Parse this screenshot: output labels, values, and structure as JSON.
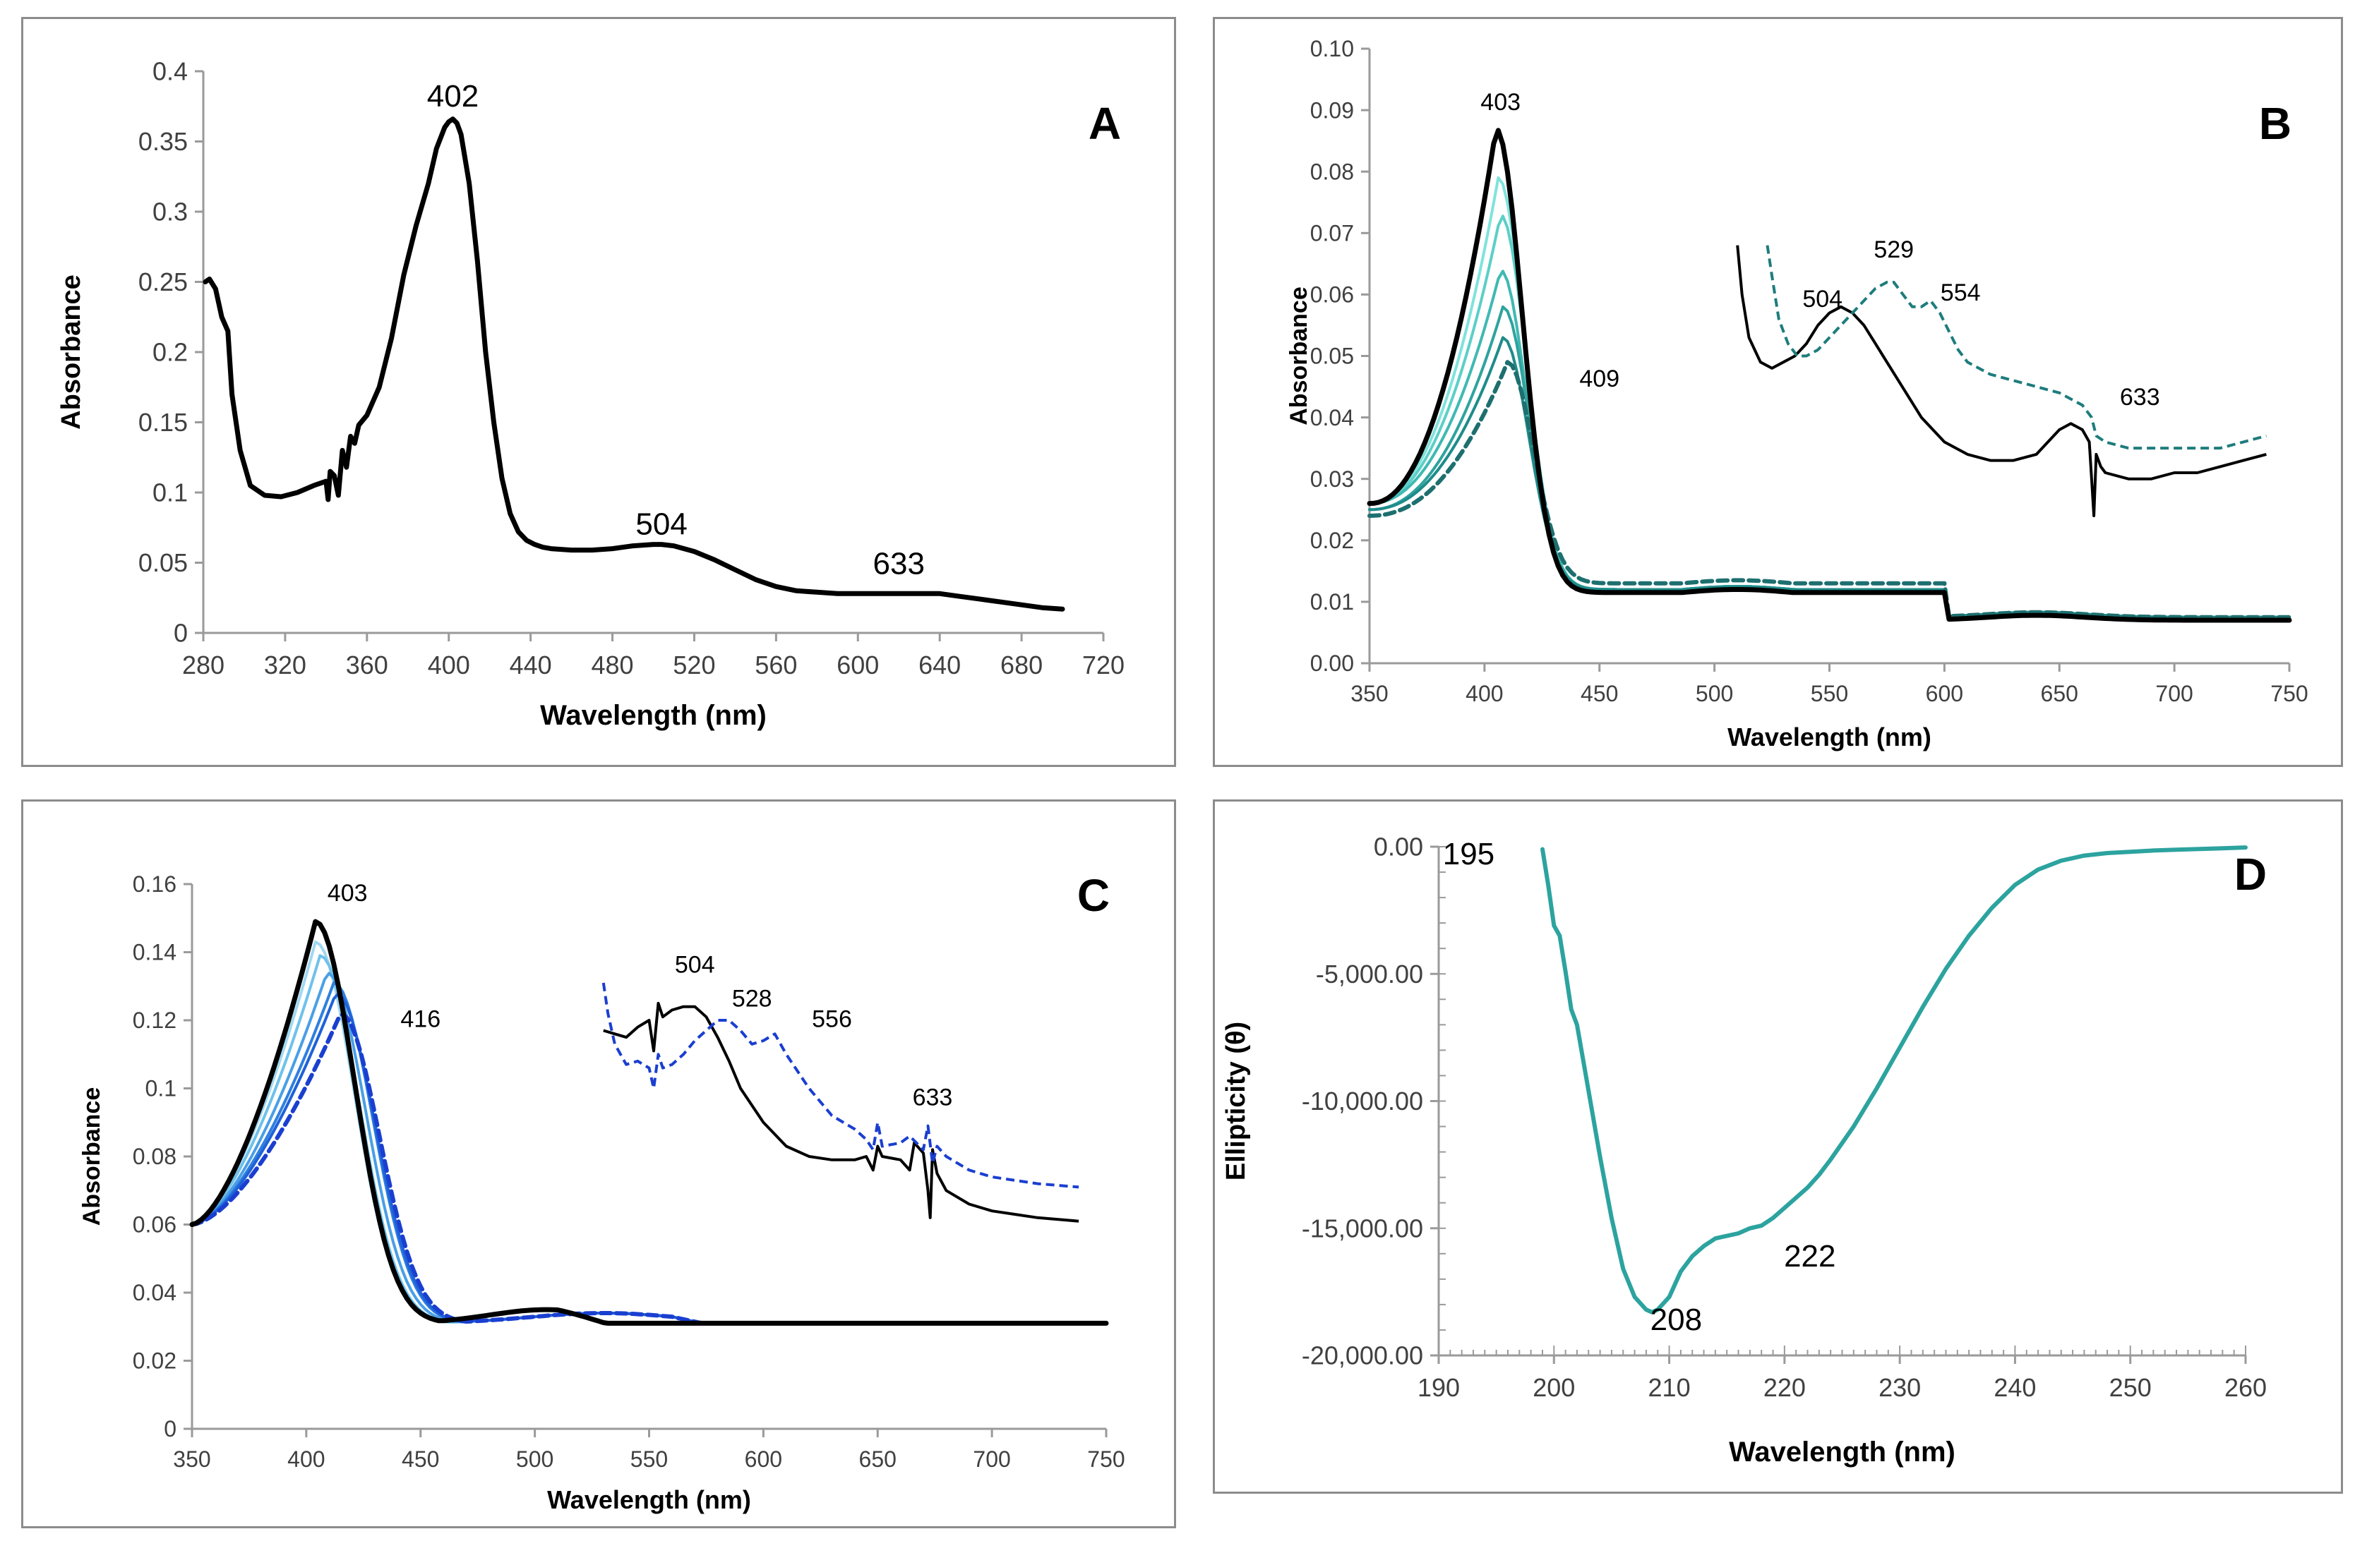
{
  "chart_data": [
    {
      "type": "line",
      "panel": "A",
      "xlabel": "Wavelength (nm)",
      "ylabel": "Absorbance",
      "xlim": [
        280,
        720
      ],
      "ylim": [
        0,
        0.4
      ],
      "xticks": [
        280,
        320,
        360,
        400,
        440,
        480,
        520,
        560,
        600,
        640,
        680,
        720
      ],
      "yticks": [
        0,
        0.05,
        0.1,
        0.15,
        0.2,
        0.25,
        0.3,
        0.35,
        0.4
      ],
      "annotations": [
        {
          "text": "402",
          "x": 402,
          "y": 0.375
        },
        {
          "text": "504",
          "x": 504,
          "y": 0.07
        },
        {
          "text": "633",
          "x": 620,
          "y": 0.042
        }
      ],
      "series": [
        {
          "name": "spectrum",
          "color": "#000000",
          "width": 7,
          "dash": "",
          "x": [
            281,
            283,
            286,
            289,
            292,
            294,
            298,
            303,
            310,
            318,
            326,
            334,
            340,
            341,
            342,
            344,
            346,
            348,
            350,
            352,
            354,
            356,
            360,
            366,
            372,
            378,
            384,
            390,
            394,
            398,
            400,
            402,
            404,
            406,
            410,
            414,
            418,
            422,
            426,
            430,
            434,
            438,
            442,
            446,
            450,
            460,
            470,
            480,
            490,
            500,
            504,
            510,
            520,
            530,
            540,
            550,
            560,
            570,
            580,
            590,
            600,
            610,
            620,
            630,
            640,
            650,
            660,
            670,
            680,
            690,
            700
          ],
          "y": [
            0.25,
            0.252,
            0.245,
            0.225,
            0.215,
            0.17,
            0.13,
            0.105,
            0.098,
            0.097,
            0.1,
            0.105,
            0.108,
            0.095,
            0.115,
            0.112,
            0.098,
            0.13,
            0.118,
            0.14,
            0.135,
            0.148,
            0.155,
            0.175,
            0.21,
            0.255,
            0.29,
            0.32,
            0.345,
            0.36,
            0.364,
            0.366,
            0.363,
            0.355,
            0.32,
            0.265,
            0.2,
            0.15,
            0.11,
            0.085,
            0.072,
            0.066,
            0.063,
            0.061,
            0.06,
            0.059,
            0.059,
            0.06,
            0.062,
            0.063,
            0.063,
            0.062,
            0.058,
            0.052,
            0.045,
            0.038,
            0.033,
            0.03,
            0.029,
            0.028,
            0.028,
            0.028,
            0.028,
            0.028,
            0.028,
            0.026,
            0.024,
            0.022,
            0.02,
            0.018,
            0.017
          ]
        }
      ]
    },
    {
      "type": "line",
      "panel": "B",
      "xlabel": "Wavelength (nm)",
      "ylabel": "Absorbance",
      "xlim": [
        350,
        750
      ],
      "ylim": [
        0,
        0.1
      ],
      "xticks": [
        350,
        400,
        450,
        500,
        550,
        600,
        650,
        700,
        750
      ],
      "yticks": [
        0.0,
        0.01,
        0.02,
        0.03,
        0.04,
        0.05,
        0.06,
        0.07,
        0.08,
        0.09,
        0.1
      ],
      "annotations": [
        {
          "text": "403",
          "x": 407,
          "y": 0.09
        },
        {
          "text": "409",
          "x": 450,
          "y": 0.045
        },
        {
          "text": "504",
          "x": 547,
          "y": 0.058
        },
        {
          "text": "529",
          "x": 578,
          "y": 0.066
        },
        {
          "text": "554",
          "x": 607,
          "y": 0.059
        },
        {
          "text": "633",
          "x": 685,
          "y": 0.042
        }
      ],
      "series": [
        {
          "name": "titration-1",
          "color": "#7fe3dc",
          "width": 4,
          "dash": "",
          "peak": 0.079,
          "peakx": 406,
          "tail": [
            0.026,
            0.012,
            0.0075
          ]
        },
        {
          "name": "titration-2",
          "color": "#5ccfc7",
          "width": 4,
          "dash": "",
          "peak": 0.073,
          "peakx": 407,
          "tail": [
            0.026,
            0.012,
            0.0075
          ]
        },
        {
          "name": "titration-3",
          "color": "#3fb9b3",
          "width": 4,
          "dash": "",
          "peak": 0.064,
          "peakx": 407,
          "tail": [
            0.026,
            0.012,
            0.0075
          ]
        },
        {
          "name": "titration-4",
          "color": "#2fa39f",
          "width": 4,
          "dash": "",
          "peak": 0.058,
          "peakx": 408,
          "tail": [
            0.025,
            0.012,
            0.0075
          ]
        },
        {
          "name": "titration-5",
          "color": "#1e8c8a",
          "width": 4,
          "dash": "",
          "peak": 0.053,
          "peakx": 408,
          "tail": [
            0.025,
            0.012,
            0.0075
          ]
        },
        {
          "name": "final-409",
          "color": "#1e6f6f",
          "width": 6,
          "dash": "14,8",
          "peak": 0.049,
          "peakx": 410,
          "tail": [
            0.024,
            0.013,
            0.0075
          ]
        },
        {
          "name": "initial-403",
          "color": "#000000",
          "width": 7,
          "dash": "",
          "peak": 0.087,
          "peakx": 405,
          "tail": [
            0.026,
            0.0115,
            0.007
          ]
        }
      ],
      "inset": [
        {
          "name": "inset-solid",
          "color": "#000000",
          "width": 4,
          "dash": "",
          "x": [
            510,
            512,
            515,
            520,
            525,
            530,
            535,
            540,
            545,
            550,
            555,
            560,
            565,
            570,
            575,
            580,
            590,
            600,
            610,
            620,
            630,
            640,
            645,
            650,
            655,
            660,
            663,
            664,
            665,
            666,
            668,
            670,
            680,
            690,
            700,
            710,
            720,
            730,
            740
          ],
          "y": [
            0.068,
            0.06,
            0.053,
            0.049,
            0.048,
            0.049,
            0.05,
            0.052,
            0.055,
            0.057,
            0.058,
            0.057,
            0.055,
            0.052,
            0.049,
            0.046,
            0.04,
            0.036,
            0.034,
            0.033,
            0.033,
            0.034,
            0.036,
            0.038,
            0.039,
            0.038,
            0.036,
            0.03,
            0.024,
            0.034,
            0.032,
            0.031,
            0.03,
            0.03,
            0.031,
            0.031,
            0.032,
            0.033,
            0.034
          ]
        },
        {
          "name": "inset-dashed",
          "color": "#1e7c7c",
          "width": 4,
          "dash": "12,7",
          "x": [
            523,
            525,
            528,
            532,
            536,
            540,
            545,
            550,
            555,
            560,
            565,
            570,
            575,
            578,
            582,
            586,
            590,
            594,
            598,
            602,
            606,
            610,
            620,
            630,
            640,
            650,
            655,
            660,
            664,
            666,
            670,
            680,
            690,
            700,
            710,
            720,
            730,
            740
          ],
          "y": [
            0.068,
            0.063,
            0.056,
            0.052,
            0.05,
            0.05,
            0.051,
            0.053,
            0.055,
            0.057,
            0.059,
            0.061,
            0.062,
            0.062,
            0.06,
            0.058,
            0.058,
            0.059,
            0.057,
            0.054,
            0.051,
            0.049,
            0.047,
            0.046,
            0.045,
            0.044,
            0.043,
            0.042,
            0.04,
            0.037,
            0.036,
            0.035,
            0.035,
            0.035,
            0.035,
            0.035,
            0.036,
            0.037
          ]
        }
      ]
    },
    {
      "type": "line",
      "panel": "C",
      "xlabel": "Wavelength (nm)",
      "ylabel": "Absorbance",
      "xlim": [
        350,
        750
      ],
      "ylim": [
        0,
        0.16
      ],
      "xticks": [
        350,
        400,
        450,
        500,
        550,
        600,
        650,
        700,
        750
      ],
      "yticks": [
        0,
        0.02,
        0.04,
        0.06,
        0.08,
        0.1,
        0.12,
        0.14,
        0.16
      ],
      "annotations": [
        {
          "text": "403",
          "x": 418,
          "y": 0.155
        },
        {
          "text": "416",
          "x": 450,
          "y": 0.118
        },
        {
          "text": "504",
          "x": 570,
          "y": 0.134
        },
        {
          "text": "528",
          "x": 595,
          "y": 0.124
        },
        {
          "text": "556",
          "x": 630,
          "y": 0.118
        },
        {
          "text": "633",
          "x": 674,
          "y": 0.095
        }
      ],
      "series": [
        {
          "name": "titration-1",
          "color": "#9fd8f2",
          "width": 4,
          "dash": "",
          "peak": 0.143,
          "peakx": 404
        },
        {
          "name": "titration-2",
          "color": "#6fc1ec",
          "width": 4,
          "dash": "",
          "peak": 0.139,
          "peakx": 406
        },
        {
          "name": "titration-3",
          "color": "#4a9fe6",
          "width": 4,
          "dash": "",
          "peak": 0.134,
          "peakx": 409
        },
        {
          "name": "titration-4",
          "color": "#2f7fe0",
          "width": 4,
          "dash": "",
          "peak": 0.131,
          "peakx": 412
        },
        {
          "name": "titration-5",
          "color": "#1f62d8",
          "width": 4,
          "dash": "",
          "peak": 0.128,
          "peakx": 413
        },
        {
          "name": "final-416",
          "color": "#1a3fd0",
          "width": 6,
          "dash": "14,8",
          "peak": 0.122,
          "peakx": 415
        },
        {
          "name": "initial-403",
          "color": "#000000",
          "width": 7,
          "dash": "",
          "peak": 0.149,
          "peakx": 404
        }
      ],
      "inset": [
        {
          "name": "inset-solid",
          "color": "#000000",
          "width": 4,
          "dash": "",
          "x": [
            530,
            535,
            540,
            545,
            550,
            552,
            554,
            556,
            560,
            565,
            570,
            575,
            580,
            585,
            590,
            600,
            610,
            620,
            630,
            640,
            645,
            648,
            650,
            652,
            660,
            664,
            666,
            670,
            672,
            673,
            674,
            676,
            680,
            690,
            700,
            710,
            720,
            738
          ],
          "y": [
            0.117,
            0.116,
            0.115,
            0.118,
            0.12,
            0.111,
            0.125,
            0.121,
            0.123,
            0.124,
            0.124,
            0.121,
            0.115,
            0.108,
            0.1,
            0.09,
            0.083,
            0.08,
            0.079,
            0.079,
            0.08,
            0.076,
            0.083,
            0.08,
            0.079,
            0.076,
            0.084,
            0.081,
            0.07,
            0.062,
            0.082,
            0.075,
            0.07,
            0.066,
            0.064,
            0.063,
            0.062,
            0.061
          ]
        },
        {
          "name": "inset-dashed",
          "color": "#1a3fd0",
          "width": 4,
          "dash": "12,7",
          "x": [
            530,
            532,
            535,
            540,
            545,
            550,
            552,
            554,
            556,
            560,
            565,
            570,
            575,
            580,
            585,
            590,
            595,
            600,
            605,
            610,
            620,
            630,
            640,
            645,
            648,
            650,
            652,
            660,
            664,
            670,
            672,
            674,
            676,
            680,
            690,
            700,
            710,
            720,
            738
          ],
          "y": [
            0.131,
            0.122,
            0.113,
            0.107,
            0.108,
            0.106,
            0.1,
            0.11,
            0.106,
            0.107,
            0.11,
            0.114,
            0.117,
            0.12,
            0.12,
            0.117,
            0.113,
            0.114,
            0.116,
            0.11,
            0.1,
            0.092,
            0.088,
            0.085,
            0.082,
            0.09,
            0.083,
            0.084,
            0.086,
            0.082,
            0.089,
            0.078,
            0.083,
            0.08,
            0.076,
            0.074,
            0.073,
            0.072,
            0.071
          ]
        }
      ]
    },
    {
      "type": "line",
      "panel": "D",
      "xlabel": "Wavelength (nm)",
      "ylabel": "Ellipticity (θ)",
      "xlim": [
        190,
        260
      ],
      "ylim": [
        -20000,
        0
      ],
      "xticks": [
        190,
        200,
        210,
        220,
        230,
        240,
        250,
        260
      ],
      "yticks": [
        -20000,
        -15000,
        -10000,
        -5000,
        0
      ],
      "ytick_labels": [
        "-20,000.00",
        "-15,000.00",
        "-10,000.00",
        "-5,000.00",
        "0.00"
      ],
      "annotations": [
        {
          "text": "195",
          "x": 192.6,
          "y": -700
        },
        {
          "text": "208",
          "x": 210.6,
          "y": -19000
        },
        {
          "text": "222",
          "x": 222.2,
          "y": -16500
        }
      ],
      "series": [
        {
          "name": "cd-spectrum",
          "color": "#2ca39f",
          "width": 6,
          "dash": "",
          "x": [
            199,
            199.5,
            200,
            200.5,
            201,
            201.5,
            202,
            203,
            204,
            205,
            206,
            207,
            208,
            208.5,
            209,
            210,
            211,
            212,
            213,
            214,
            215,
            216,
            217,
            218,
            219,
            220,
            221,
            222,
            223,
            224,
            226,
            228,
            230,
            232,
            234,
            236,
            238,
            240,
            242,
            244,
            246,
            248,
            250,
            252,
            254,
            256,
            258,
            260
          ],
          "y": [
            -100,
            -1500,
            -3100,
            -3500,
            -4900,
            -6400,
            -7000,
            -9600,
            -12200,
            -14600,
            -16600,
            -17700,
            -18200,
            -18300,
            -18200,
            -17700,
            -16700,
            -16100,
            -15700,
            -15400,
            -15300,
            -15200,
            -15000,
            -14900,
            -14600,
            -14200,
            -13800,
            -13400,
            -12900,
            -12300,
            -11000,
            -9500,
            -7900,
            -6300,
            -4800,
            -3500,
            -2400,
            -1500,
            -900,
            -550,
            -350,
            -250,
            -200,
            -150,
            -120,
            -90,
            -60,
            -30
          ]
        }
      ]
    }
  ]
}
